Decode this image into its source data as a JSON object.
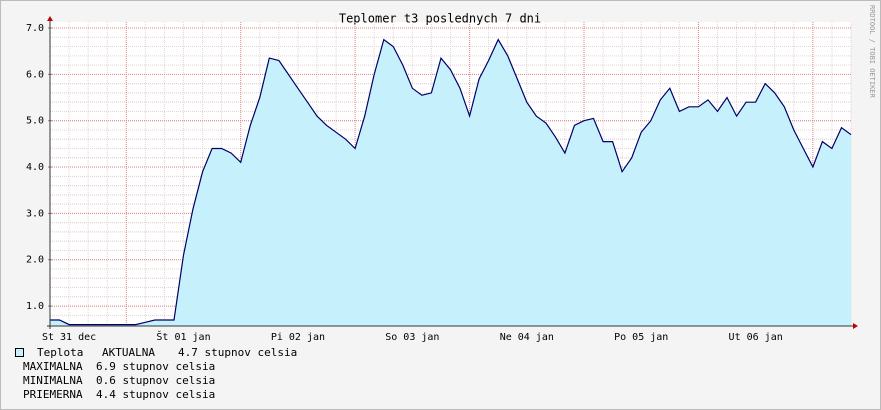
{
  "chart_data": {
    "type": "area",
    "title": "Teplomer t3 poslednych 7 dni",
    "watermark": "RRDTOOL / TOBI OETIKER",
    "categories": [
      null,
      null,
      "St 31 dec",
      null,
      null,
      null,
      null,
      null,
      null,
      null,
      null,
      null,
      null,
      null,
      "Št 01 jan",
      null,
      null,
      null,
      null,
      null,
      null,
      null,
      null,
      null,
      null,
      null,
      "Pi 02 jan",
      null,
      null,
      null,
      null,
      null,
      null,
      null,
      null,
      null,
      null,
      null,
      "So 03 jan",
      null,
      null,
      null,
      null,
      null,
      null,
      null,
      null,
      null,
      null,
      null,
      "Ne 04 jan",
      null,
      null,
      null,
      null,
      null,
      null,
      null,
      null,
      null,
      null,
      null,
      "Po 05 jan",
      null,
      null,
      null,
      null,
      null,
      null,
      null,
      null,
      null,
      null,
      null,
      "Ut 06 jan",
      null,
      null,
      null,
      null,
      null,
      null,
      null,
      null,
      null,
      null
    ],
    "series": [
      {
        "name": "Teplota",
        "color": "#000066",
        "fill": "#c6f1fc",
        "values": [
          0.7,
          0.7,
          0.6,
          0.6,
          0.6,
          0.6,
          0.6,
          0.6,
          0.6,
          0.6,
          0.65,
          0.7,
          0.7,
          0.7,
          2.1,
          3.1,
          3.9,
          4.4,
          4.4,
          4.3,
          4.1,
          4.9,
          5.5,
          6.35,
          6.3,
          6.0,
          5.7,
          5.4,
          5.1,
          4.9,
          4.75,
          4.6,
          4.4,
          5.1,
          6.0,
          6.75,
          6.6,
          6.2,
          5.7,
          5.55,
          5.6,
          6.35,
          6.1,
          5.7,
          5.1,
          5.9,
          6.3,
          6.75,
          6.4,
          5.9,
          5.4,
          5.1,
          4.95,
          4.65,
          4.3,
          4.9,
          5.0,
          5.05,
          4.55,
          4.55,
          3.9,
          4.2,
          4.75,
          5.0,
          5.45,
          5.7,
          5.2,
          5.3,
          5.3,
          5.45,
          5.2,
          5.5,
          5.1,
          5.4,
          5.4,
          5.8,
          5.6,
          5.3,
          4.8,
          4.4,
          4.0,
          4.55,
          4.4,
          4.85,
          4.7
        ]
      }
    ],
    "ylim": [
      0.57,
      7.13
    ],
    "yticks": [
      {
        "value": 1,
        "label": "1.0"
      },
      {
        "value": 2,
        "label": "2.0"
      },
      {
        "value": 3,
        "label": "3.0"
      },
      {
        "value": 4,
        "label": "4.0"
      },
      {
        "value": 5,
        "label": "5.0"
      },
      {
        "value": 6,
        "label": "6.0"
      },
      {
        "value": 7,
        "label": "7.0"
      }
    ],
    "grid": true,
    "legend_stats": [
      {
        "label": "AKTUALNA",
        "text": "4.7 stupnov celsia"
      },
      {
        "label": "MAXIMALNA",
        "text": "6.9 stupnov celsia"
      },
      {
        "label": "MINIMALNA",
        "text": "0.6 stupnov celsia"
      },
      {
        "label": "PRIEMERNA",
        "text": "4.4 stupnov celsia"
      }
    ]
  }
}
